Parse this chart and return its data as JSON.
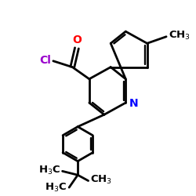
{
  "background_color": "#ffffff",
  "atom_colors": {
    "O": "#ff0000",
    "N": "#0000ff",
    "Cl": "#9900cc",
    "C": "#000000"
  },
  "bond_lw": 2.0,
  "font_size": 9.5
}
